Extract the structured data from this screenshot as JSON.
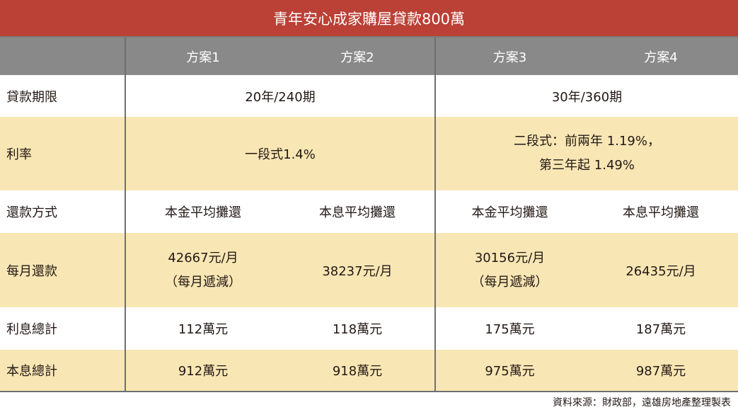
{
  "title": "青年安心成家購屋貸款800萬",
  "header": {
    "corner": "",
    "plans": [
      "方案1",
      "方案2",
      "方案3",
      "方案4"
    ]
  },
  "rows": {
    "term": {
      "label": "貸款期限",
      "group_a": "20年/240期",
      "group_b": "30年/360期"
    },
    "rate": {
      "label": "利率",
      "group_a": "一段式1.4%",
      "group_b_line1": "二段式：前兩年 1.19%，",
      "group_b_line2": "第三年起 1.49%"
    },
    "repayment": {
      "label": "還款方式",
      "values": [
        "本金平均攤還",
        "本息平均攤還",
        "本金平均攤還",
        "本息平均攤還"
      ]
    },
    "monthly": {
      "label": "每月還款",
      "p1_line1": "42667元/月",
      "p1_line2": "（每月遞減）",
      "p2": "38237元/月",
      "p3_line1": "30156元/月",
      "p3_line2": "（每月遞減）",
      "p4": "26435元/月"
    },
    "interest_total": {
      "label": "利息總計",
      "values": [
        "112萬元",
        "118萬元",
        "175萬元",
        "187萬元"
      ]
    },
    "principal_interest_total": {
      "label": "本息總計",
      "values": [
        "912萬元",
        "918萬元",
        "975萬元",
        "987萬元"
      ]
    }
  },
  "source": "資料來源：財政部，遠雄房地產整理製表",
  "colors": {
    "title_bg": "#bb4035",
    "header_bg": "#898989",
    "stripe_bg": "#f8e7b4"
  }
}
